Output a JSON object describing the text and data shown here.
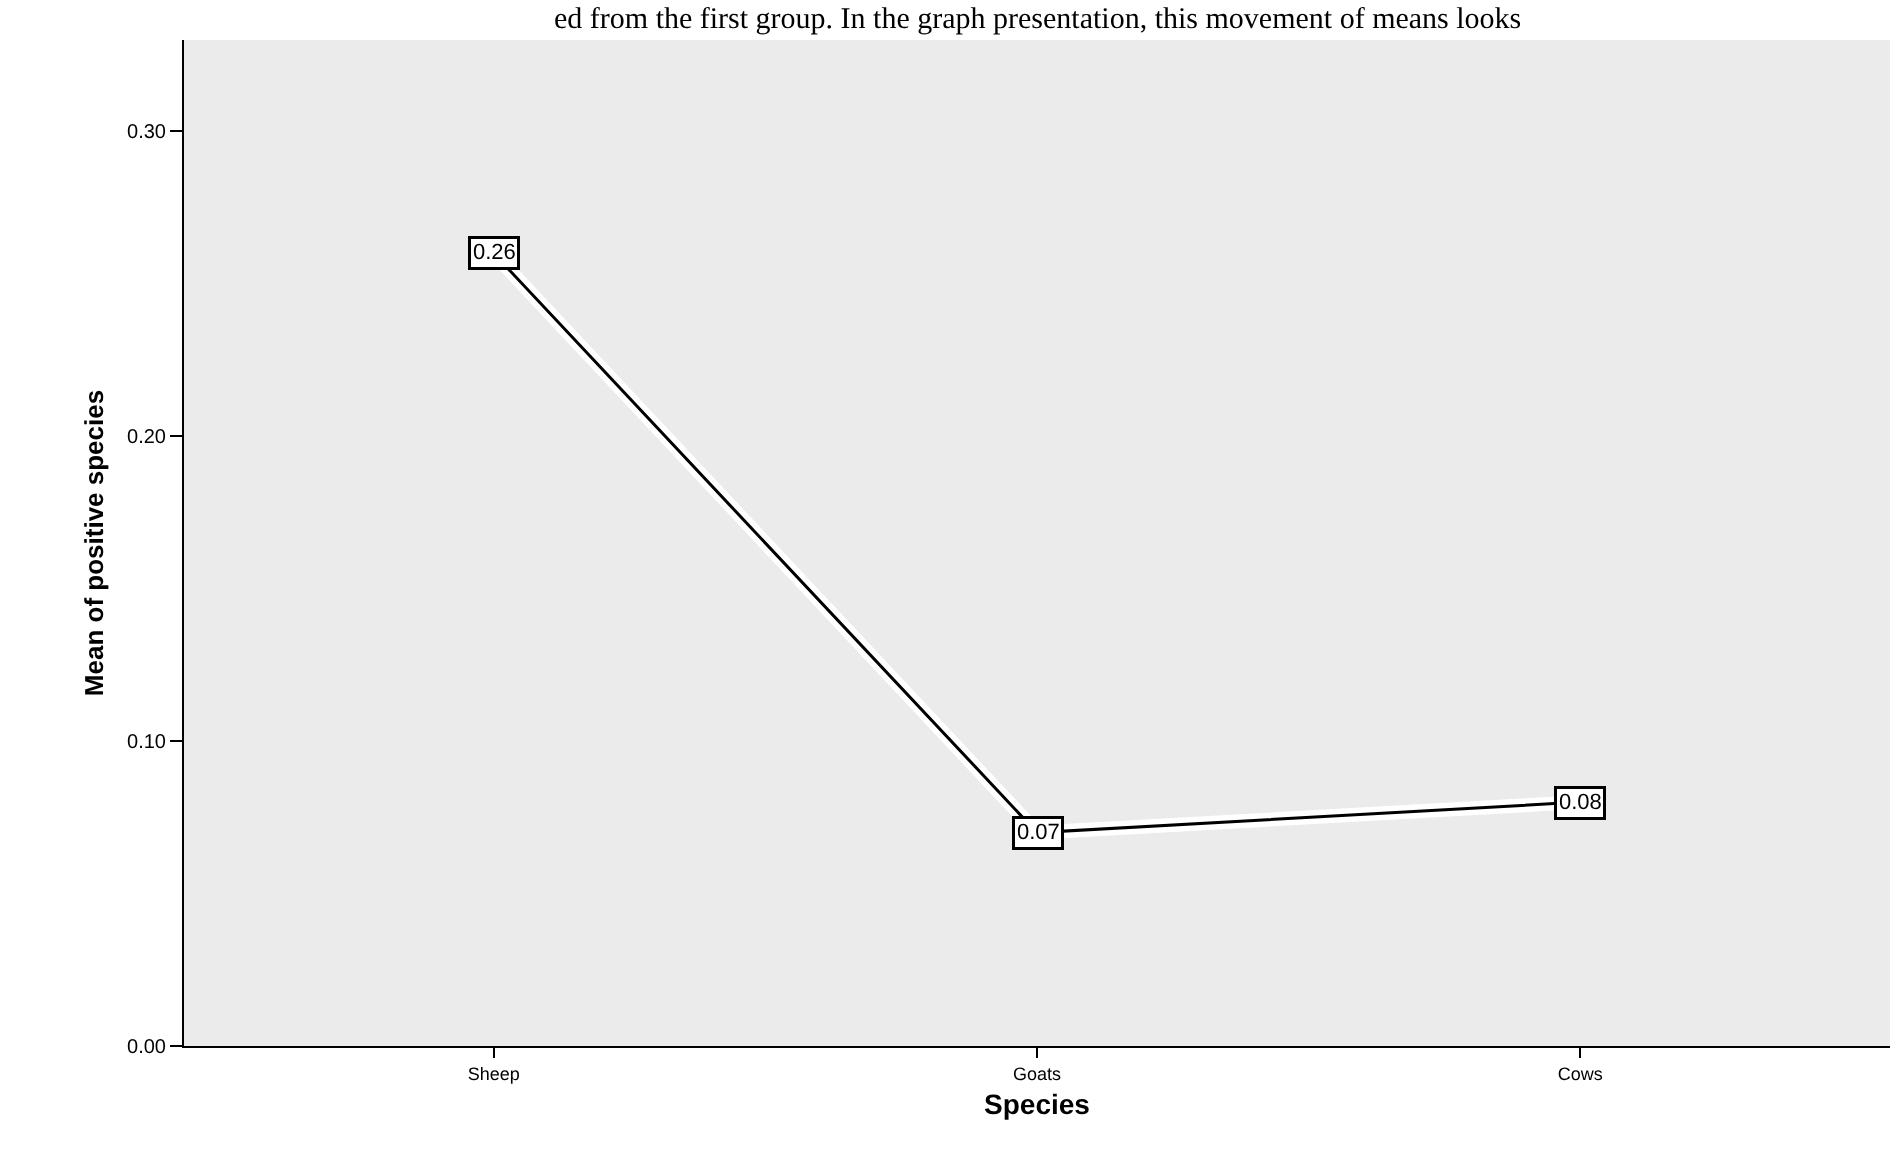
{
  "chart_data": {
    "type": "line",
    "annotations": [
      "ed from the first group. In the graph presentation, this movement of means looks"
    ],
    "xlabel": "Species",
    "ylabel": "Mean of positive species",
    "categories": [
      "Sheep",
      "Goats",
      "Cows"
    ],
    "series": [
      {
        "color": "#000000",
        "values": [
          0.26,
          0.07,
          0.08
        ]
      }
    ],
    "ylim": [
      0,
      0.33
    ],
    "yticks": [
      {
        "value": 0,
        "label": "0.00"
      },
      {
        "value": 0.1,
        "label": "0.10"
      },
      {
        "value": 0.2,
        "label": "0.20"
      },
      {
        "value": 0.3,
        "label": "0.30"
      }
    ],
    "data_labels": true,
    "grid": false,
    "marker": "square",
    "line_style": "solid"
  }
}
